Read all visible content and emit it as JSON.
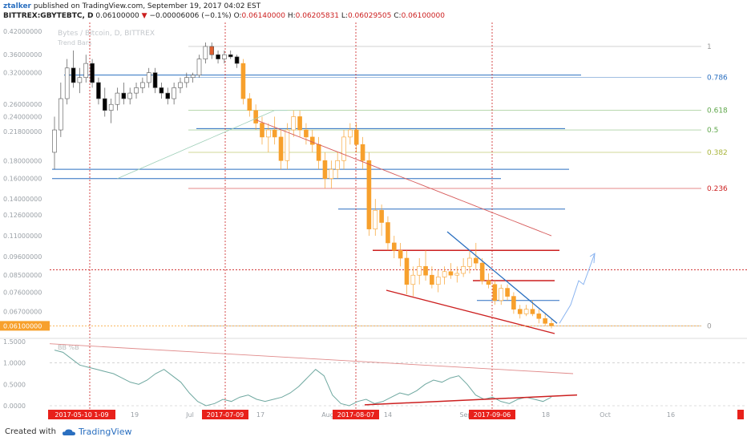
{
  "header": {
    "user": "ztalker",
    "published": "published on TradingView.com, September 19, 2017 04:02 EST",
    "symbol": "BITTREX:GBYTEBTC, D",
    "price": "0.06100000",
    "change": "−0.00006006 (−0.1%)",
    "o_label": "O:",
    "o_value": "0.06140000",
    "h_label": "H:",
    "h_value": "0.06205831",
    "l_label": "L:",
    "l_value": "0.06029505",
    "c_label": "C:",
    "c_value": "0.06100000"
  },
  "watermark": {
    "title": "Bytes / Bitcoin, D, BITTREX",
    "indicator": "Trend Bars"
  },
  "osc_label": "BB %B",
  "footer": {
    "created": "Created with",
    "brand": "TradingView"
  },
  "colors": {
    "bull_candle": "#ffffff",
    "bear_candle": "#000000",
    "orange_candle": "#f7a02c",
    "red_candle": "#e06030",
    "fib_red": "#cc1f1f",
    "fib_blue": "#2a6fc0",
    "fib_green": "#5ea64a",
    "fib_olive": "#a8b43a",
    "price_label": "#f7a02c",
    "date_box": "#e8211b",
    "oscillator": "#6fa8a0"
  },
  "chart_data": {
    "type": "candlestick",
    "title": "Bytes / Bitcoin, D, BITTREX",
    "y_ticks": [
      "0.42000000",
      "0.36000000",
      "0.32000000",
      "0.26000000",
      "0.24000000",
      "0.21800000",
      "0.18000000",
      "0.16000000",
      "0.14000000",
      "0.12600000",
      "0.11000000",
      "0.09600000",
      "0.08500000",
      "0.07600000",
      "0.06700000"
    ],
    "current_price": "0.06100000",
    "x_ticks": [
      "2017-05-10 1-09",
      "19",
      "Jul",
      "2017-07-09",
      "17",
      "Aug",
      "2017-08-07",
      "14",
      "Sep",
      "2017-09-06",
      "18",
      "Oct",
      "16"
    ],
    "date_markers": [
      "2017-05-10 1-09",
      "2017-07-09",
      "2017-08-07",
      "2017-09-06"
    ],
    "fib_levels": [
      {
        "label": "1",
        "value": 0.38
      },
      {
        "label": "0.786",
        "value": 0.31
      },
      {
        "label": "0.618",
        "value": 0.25
      },
      {
        "label": "0.5",
        "value": 0.22
      },
      {
        "label": "0.382",
        "value": 0.19
      },
      {
        "label": "0.236",
        "value": 0.15
      },
      {
        "label": "0",
        "value": 0.061
      }
    ],
    "osc_ticks": [
      "1.5000",
      "1.0000",
      "0.5000",
      "0.0000"
    ],
    "candles": [
      [
        0.19,
        0.24,
        0.17,
        0.22
      ],
      [
        0.22,
        0.3,
        0.21,
        0.27
      ],
      [
        0.27,
        0.35,
        0.26,
        0.33
      ],
      [
        0.33,
        0.37,
        0.29,
        0.3
      ],
      [
        0.3,
        0.33,
        0.28,
        0.31
      ],
      [
        0.31,
        0.36,
        0.3,
        0.34
      ],
      [
        0.34,
        0.35,
        0.29,
        0.3
      ],
      [
        0.3,
        0.31,
        0.26,
        0.27
      ],
      [
        0.27,
        0.29,
        0.24,
        0.25
      ],
      [
        0.25,
        0.27,
        0.23,
        0.26
      ],
      [
        0.26,
        0.29,
        0.25,
        0.28
      ],
      [
        0.28,
        0.3,
        0.26,
        0.27
      ],
      [
        0.27,
        0.29,
        0.26,
        0.28
      ],
      [
        0.28,
        0.3,
        0.27,
        0.29
      ],
      [
        0.29,
        0.31,
        0.28,
        0.3
      ],
      [
        0.3,
        0.33,
        0.29,
        0.32
      ],
      [
        0.32,
        0.33,
        0.28,
        0.29
      ],
      [
        0.29,
        0.3,
        0.27,
        0.28
      ],
      [
        0.28,
        0.29,
        0.26,
        0.27
      ],
      [
        0.27,
        0.3,
        0.26,
        0.29
      ],
      [
        0.29,
        0.31,
        0.28,
        0.3
      ],
      [
        0.3,
        0.32,
        0.29,
        0.31
      ],
      [
        0.31,
        0.32,
        0.3,
        0.315
      ],
      [
        0.315,
        0.36,
        0.31,
        0.35
      ],
      [
        0.35,
        0.39,
        0.34,
        0.38
      ],
      [
        0.38,
        0.39,
        0.35,
        0.36
      ],
      [
        0.36,
        0.37,
        0.34,
        0.35
      ],
      [
        0.35,
        0.37,
        0.34,
        0.36
      ],
      [
        0.36,
        0.37,
        0.35,
        0.355
      ],
      [
        0.355,
        0.36,
        0.33,
        0.34
      ],
      [
        0.34,
        0.35,
        0.26,
        0.27
      ],
      [
        0.27,
        0.28,
        0.24,
        0.25
      ],
      [
        0.25,
        0.26,
        0.22,
        0.23
      ],
      [
        0.23,
        0.24,
        0.2,
        0.21
      ],
      [
        0.21,
        0.23,
        0.19,
        0.22
      ],
      [
        0.22,
        0.24,
        0.2,
        0.21
      ],
      [
        0.21,
        0.22,
        0.17,
        0.18
      ],
      [
        0.18,
        0.23,
        0.17,
        0.22
      ],
      [
        0.22,
        0.25,
        0.21,
        0.24
      ],
      [
        0.24,
        0.25,
        0.21,
        0.22
      ],
      [
        0.22,
        0.23,
        0.2,
        0.21
      ],
      [
        0.21,
        0.22,
        0.19,
        0.2
      ],
      [
        0.2,
        0.21,
        0.17,
        0.18
      ],
      [
        0.18,
        0.19,
        0.15,
        0.16
      ],
      [
        0.16,
        0.18,
        0.15,
        0.17
      ],
      [
        0.17,
        0.19,
        0.16,
        0.18
      ],
      [
        0.18,
        0.22,
        0.17,
        0.21
      ],
      [
        0.21,
        0.23,
        0.2,
        0.22
      ],
      [
        0.22,
        0.23,
        0.19,
        0.2
      ],
      [
        0.2,
        0.21,
        0.17,
        0.18
      ],
      [
        0.18,
        0.19,
        0.11,
        0.115
      ],
      [
        0.115,
        0.14,
        0.11,
        0.13
      ],
      [
        0.13,
        0.135,
        0.11,
        0.12
      ],
      [
        0.12,
        0.125,
        0.1,
        0.105
      ],
      [
        0.105,
        0.11,
        0.095,
        0.1
      ],
      [
        0.1,
        0.105,
        0.09,
        0.095
      ],
      [
        0.095,
        0.1,
        0.075,
        0.08
      ],
      [
        0.08,
        0.09,
        0.074,
        0.085
      ],
      [
        0.085,
        0.095,
        0.08,
        0.09
      ],
      [
        0.09,
        0.1,
        0.082,
        0.085
      ],
      [
        0.085,
        0.09,
        0.078,
        0.08
      ],
      [
        0.08,
        0.088,
        0.076,
        0.084
      ],
      [
        0.084,
        0.09,
        0.08,
        0.087
      ],
      [
        0.087,
        0.092,
        0.083,
        0.085
      ],
      [
        0.085,
        0.09,
        0.081,
        0.086
      ],
      [
        0.086,
        0.095,
        0.084,
        0.09
      ],
      [
        0.09,
        0.1,
        0.086,
        0.095
      ],
      [
        0.095,
        0.105,
        0.088,
        0.092
      ],
      [
        0.092,
        0.095,
        0.08,
        0.082
      ],
      [
        0.082,
        0.086,
        0.078,
        0.08
      ],
      [
        0.08,
        0.082,
        0.07,
        0.072
      ],
      [
        0.072,
        0.08,
        0.07,
        0.078
      ],
      [
        0.078,
        0.08,
        0.072,
        0.074
      ],
      [
        0.074,
        0.076,
        0.066,
        0.068
      ],
      [
        0.068,
        0.07,
        0.064,
        0.066
      ],
      [
        0.066,
        0.07,
        0.065,
        0.068
      ],
      [
        0.068,
        0.072,
        0.065,
        0.066
      ],
      [
        0.066,
        0.068,
        0.062,
        0.064
      ],
      [
        0.064,
        0.066,
        0.061,
        0.062
      ],
      [
        0.062,
        0.064,
        0.06,
        0.061
      ]
    ],
    "oscillator": [
      1.3,
      1.25,
      1.1,
      0.95,
      0.9,
      0.85,
      0.8,
      0.75,
      0.65,
      0.55,
      0.5,
      0.6,
      0.75,
      0.85,
      0.7,
      0.55,
      0.3,
      0.1,
      0.0,
      0.05,
      0.15,
      0.1,
      0.2,
      0.25,
      0.15,
      0.1,
      0.15,
      0.2,
      0.3,
      0.45,
      0.65,
      0.85,
      0.7,
      0.25,
      0.05,
      0.0,
      0.1,
      0.15,
      0.05,
      0.1,
      0.2,
      0.3,
      0.25,
      0.35,
      0.5,
      0.6,
      0.55,
      0.65,
      0.7,
      0.5,
      0.25,
      0.15,
      0.2,
      0.1,
      0.05,
      0.15,
      0.2,
      0.15,
      0.1,
      0.2
    ]
  }
}
